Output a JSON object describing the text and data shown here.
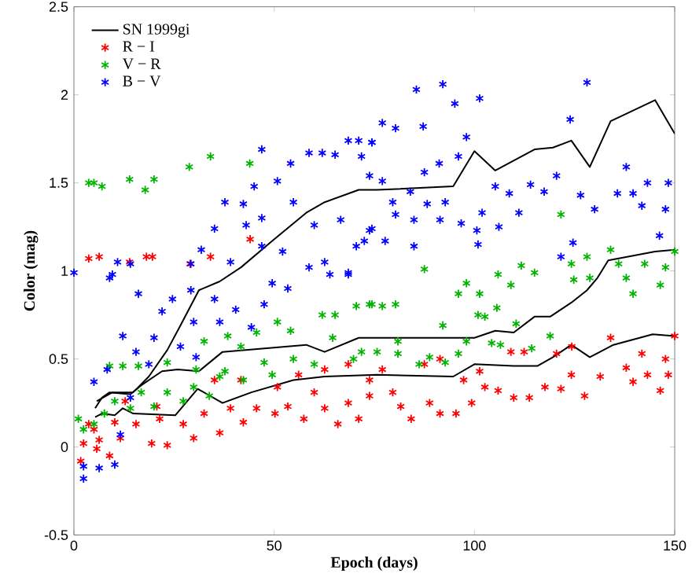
{
  "chart_data": {
    "type": "scatter",
    "xlabel": "Epoch (days)",
    "ylabel": "Color (mag)",
    "xlim": [
      0,
      150
    ],
    "ylim": [
      -0.5,
      2.5
    ],
    "xticks": [
      0,
      50,
      100,
      150
    ],
    "yticks": [
      -0.5,
      0,
      0.5,
      1,
      1.5,
      2,
      2.5
    ],
    "legend": "top left",
    "series": [
      {
        "name": "SN 1999gi",
        "type": "line",
        "color": "#000000",
        "line_style": "solid",
        "x": [
          5.7,
          9.6,
          14.8,
          18.7,
          23.3,
          26.6,
          31.2,
          36.4,
          41.7,
          49.5,
          58,
          62.6,
          71.1,
          75.7,
          94.7,
          100,
          105.2,
          115,
          119.6,
          124.2,
          128.8,
          134,
          145.1,
          150
        ],
        "values": [
          0.26,
          0.31,
          0.31,
          0.4,
          0.55,
          0.69,
          0.89,
          0.94,
          1.02,
          1.17,
          1.33,
          1.39,
          1.46,
          1.46,
          1.48,
          1.68,
          1.57,
          1.69,
          1.7,
          1.74,
          1.59,
          1.85,
          1.97,
          1.78
        ]
      },
      {
        "type": "line",
        "color": "#000000",
        "line_style": "solid",
        "x": [
          5.3,
          7,
          8.9,
          14.1,
          16.8,
          22,
          25.9,
          31.2,
          37.1,
          58,
          62.6,
          71.1,
          75.7,
          100,
          105.2,
          109.8,
          115,
          118.9,
          124.2,
          128.1,
          130.7,
          133.4,
          145.1,
          150
        ],
        "values": [
          0.22,
          0.28,
          0.31,
          0.3,
          0.35,
          0.43,
          0.44,
          0.43,
          0.54,
          0.58,
          0.54,
          0.62,
          0.62,
          0.62,
          0.66,
          0.65,
          0.74,
          0.74,
          0.82,
          0.89,
          0.96,
          1.06,
          1.11,
          1.12
        ]
      },
      {
        "type": "line",
        "color": "#000000",
        "line_style": "solid",
        "x": [
          5.3,
          7,
          10.2,
          12.2,
          14.8,
          25.3,
          30.9,
          37.1,
          44.3,
          54.8,
          62.6,
          75.7,
          94.7,
          100,
          109.8,
          115.7,
          119.6,
          124.2,
          128.8,
          134.7,
          144.5,
          150
        ],
        "values": [
          0.17,
          0.19,
          0.18,
          0.22,
          0.19,
          0.18,
          0.33,
          0.25,
          0.31,
          0.38,
          0.4,
          0.41,
          0.4,
          0.47,
          0.46,
          0.46,
          0.51,
          0.58,
          0.51,
          0.58,
          0.64,
          0.63
        ]
      },
      {
        "name": "R − I",
        "color": "#ff0000",
        "marker": "cross",
        "x": [
          3.7,
          6.3,
          13.9,
          18.1,
          19.6,
          29,
          34.1,
          44,
          1.7,
          2.4,
          5.7,
          6.3,
          8.9,
          11.6,
          5,
          10.2,
          15.5,
          19.4,
          23.3,
          21.4,
          27.3,
          29.9,
          32.5,
          36.4,
          39.1,
          42.3,
          45.6,
          50.2,
          53.4,
          57.4,
          60,
          62.6,
          65.9,
          68.5,
          71.1,
          73.8,
          35.1,
          41.7,
          50.8,
          56.1,
          62.6,
          68.5,
          20.7,
          12.8,
          3.7,
          73.8,
          77,
          79.6,
          81.6,
          84.2,
          87.5,
          91.4,
          88.8,
          91.4,
          95.4,
          99.3,
          97.3,
          101.3,
          102.6,
          105.9,
          109.1,
          112.4,
          109.8,
          113.7,
          117.6,
          121.6,
          124.2,
          127.5,
          131.4,
          134,
          137.9,
          139.6,
          141.8,
          143.2,
          146.4,
          147.7,
          148.4,
          150,
          120.5,
          124.3
        ],
        "values": [
          1.07,
          1.08,
          1.05,
          1.08,
          1.08,
          1.04,
          1.08,
          1.18,
          -0.08,
          0.02,
          -0.01,
          0.04,
          -0.05,
          0.05,
          0.1,
          0.14,
          0.13,
          0.02,
          0.01,
          0.16,
          0.13,
          0.05,
          0.19,
          0.08,
          0.22,
          0.14,
          0.22,
          0.19,
          0.23,
          0.16,
          0.31,
          0.22,
          0.13,
          0.25,
          0.16,
          0.29,
          0.38,
          0.38,
          0.34,
          0.41,
          0.44,
          0.47,
          0.23,
          0.26,
          0.13,
          0.38,
          0.44,
          0.31,
          0.23,
          0.16,
          0.47,
          0.5,
          0.25,
          0.19,
          0.19,
          0.25,
          0.38,
          0.43,
          0.34,
          0.32,
          0.54,
          0.54,
          0.28,
          0.28,
          0.34,
          0.33,
          0.41,
          0.29,
          0.4,
          0.62,
          0.45,
          0.37,
          0.53,
          0.41,
          0.32,
          0.5,
          0.41,
          0.63,
          0.53,
          0.57
        ]
      },
      {
        "name": "V − R",
        "color": "#00b400",
        "marker": "cross",
        "x": [
          3.7,
          5,
          7,
          13.9,
          17.8,
          20,
          28.8,
          34.1,
          43.9,
          1.1,
          5,
          12.2,
          8.9,
          16.1,
          23.3,
          30.5,
          32.5,
          38.4,
          41.7,
          45.6,
          50.8,
          54.1,
          62,
          65.2,
          70.5,
          74.4,
          64.6,
          71.8,
          47.5,
          54.8,
          60,
          36.4,
          42.3,
          49.5,
          29.9,
          10.2,
          16.8,
          23.3,
          7.6,
          14.1,
          20,
          27.3,
          33.8,
          37.7,
          2.4,
          69.8,
          87.5,
          73.8,
          77,
          80.3,
          96,
          98,
          101.3,
          100.9,
          102.6,
          105.9,
          109.1,
          105.6,
          110.4,
          92.1,
          118.9,
          114.3,
          104.3,
          106.5,
          75.7,
          80.9,
          88.8,
          96,
          98,
          86.2,
          92.7,
          80.9,
          124.8,
          128.8,
          137.9,
          139.6,
          146.4,
          121.6,
          128.1,
          134,
          136,
          142.5,
          147.7,
          150,
          111.7,
          115,
          124.2
        ],
        "values": [
          1.5,
          1.5,
          1.48,
          1.52,
          1.46,
          1.52,
          1.59,
          1.65,
          1.61,
          0.16,
          0.13,
          0.46,
          0.46,
          0.46,
          0.48,
          0.44,
          0.6,
          0.63,
          0.57,
          0.65,
          0.71,
          0.66,
          0.75,
          0.75,
          0.8,
          0.81,
          0.62,
          0.54,
          0.48,
          0.5,
          0.47,
          0.4,
          0.38,
          0.41,
          0.34,
          0.26,
          0.31,
          0.31,
          0.19,
          0.22,
          0.23,
          0.26,
          0.29,
          0.43,
          0.1,
          0.5,
          1.01,
          0.81,
          0.8,
          0.81,
          0.87,
          0.93,
          0.87,
          0.75,
          0.74,
          0.98,
          0.92,
          0.79,
          0.7,
          0.69,
          0.63,
          0.56,
          0.59,
          0.58,
          0.54,
          0.53,
          0.51,
          0.53,
          0.6,
          0.47,
          0.48,
          0.6,
          0.95,
          0.96,
          0.96,
          0.87,
          0.92,
          1.32,
          1.08,
          1.12,
          1.04,
          1.04,
          1.02,
          1.11,
          1.03,
          0.99,
          1.04
        ]
      },
      {
        "name": "B − V",
        "color": "#0000ff",
        "marker": "cross",
        "x": [
          0,
          10.9,
          8.9,
          14.1,
          31.8,
          29.2,
          35.1,
          37.7,
          42.3,
          46.9,
          45,
          50.8,
          54.1,
          58.7,
          62,
          65.2,
          68.5,
          71.1,
          74.4,
          71.8,
          46.9,
          54.8,
          46.9,
          52.1,
          60,
          66.6,
          70.5,
          68.5,
          62.6,
          39.1,
          73.8,
          43,
          9.6,
          16.1,
          22,
          24.6,
          29.2,
          29.9,
          12.2,
          15.5,
          20,
          18.7,
          26.6,
          30.5,
          5,
          8.3,
          14.1,
          2.4,
          6.3,
          10.2,
          2.4,
          11.6,
          35.1,
          40.4,
          44.3,
          36.4,
          49.5,
          53.4,
          47.5,
          63.9,
          68.5,
          58.7,
          85.5,
          92.1,
          95.1,
          101.3,
          128.1,
          77,
          80.3,
          87.2,
          98,
          123.9,
          137.9,
          143.2,
          148.4,
          135.7,
          139.6,
          126.5,
          130,
          141.8,
          147.7,
          146.2,
          124.6,
          121.6,
          87.5,
          91.2,
          96,
          74.4,
          73.8,
          77,
          79.6,
          84,
          88.2,
          92.7,
          80.3,
          84.9,
          91.4,
          96.7,
          74.4,
          77.7,
          84.9,
          100.6,
          100.9,
          106.1,
          108.7,
          111.1,
          114,
          117.4,
          120.5,
          101.9,
          105.2,
          72.5
        ],
        "values": [
          0.99,
          1.05,
          0.96,
          1.04,
          1.12,
          1.04,
          1.24,
          1.39,
          1.38,
          1.69,
          1.48,
          1.51,
          1.61,
          1.67,
          1.67,
          1.66,
          1.74,
          1.74,
          1.73,
          1.65,
          1.3,
          1.39,
          1.14,
          1.11,
          1.26,
          1.29,
          1.14,
          0.99,
          1.05,
          1.05,
          1.23,
          1.26,
          0.98,
          0.87,
          0.77,
          0.84,
          0.89,
          0.71,
          0.63,
          0.54,
          0.62,
          0.47,
          0.57,
          0.51,
          0.37,
          0.44,
          0.28,
          -0.11,
          -0.12,
          -0.1,
          -0.18,
          0.07,
          0.84,
          0.78,
          0.68,
          0.71,
          0.93,
          0.9,
          0.81,
          0.98,
          0.98,
          1.02,
          2.03,
          2.06,
          1.95,
          1.98,
          2.07,
          1.84,
          1.81,
          1.82,
          1.76,
          1.86,
          1.59,
          1.5,
          1.5,
          1.44,
          1.44,
          1.43,
          1.35,
          1.37,
          1.35,
          1.2,
          1.16,
          1.08,
          1.56,
          1.61,
          1.65,
          1.73,
          1.54,
          1.51,
          1.39,
          1.45,
          1.38,
          1.39,
          1.32,
          1.29,
          1.29,
          1.27,
          1.24,
          1.17,
          1.14,
          1.23,
          1.15,
          1.25,
          1.44,
          1.33,
          1.49,
          1.45,
          1.54,
          1.33,
          1.48,
          1.17
        ]
      }
    ]
  }
}
